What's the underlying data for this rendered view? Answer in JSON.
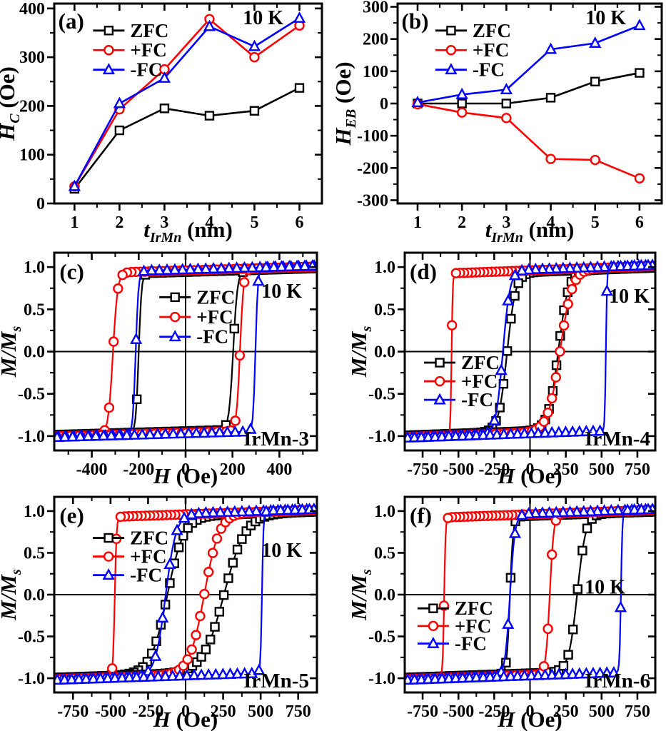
{
  "figure": {
    "background": "#ffffff",
    "temperature_label": "10 K",
    "series_colors": {
      "ZFC": "#000000",
      "+FC": "#ff0000",
      "-FC": "#0000ff"
    }
  },
  "chart_data": [
    {
      "id": "a",
      "type": "line",
      "panel_label": "(a)",
      "title": "",
      "xlabel": {
        "italic": "t",
        "sub": "IrMn",
        "rest": " (nm)"
      },
      "ylabel": {
        "italic": "H",
        "sub": "C",
        "rest": " (Oe)"
      },
      "xlim": [
        0.55,
        6.5
      ],
      "ylim": [
        0,
        410
      ],
      "xticks": [
        1,
        2,
        3,
        4,
        5,
        6
      ],
      "yticks": [
        0,
        100,
        200,
        300,
        400
      ],
      "xminor": [
        1.5,
        2.5,
        3.5,
        4.5,
        5.5
      ],
      "yminor": [
        50,
        150,
        250,
        350
      ],
      "zero_lines": false,
      "grid": false,
      "legend_position": "upper-left",
      "legend": {
        "fx": 0.145,
        "fy": 0.135,
        "dy": 0.098
      },
      "annotations": [
        {
          "text": "(a)",
          "fx": 0.015,
          "fy": 0.125,
          "anchor": "start",
          "size": 31
        },
        {
          "text": "10 K",
          "fx": 0.856,
          "fy": 0.103,
          "anchor": "end",
          "size": 28
        }
      ],
      "x": [
        1,
        2,
        3,
        4,
        5,
        6
      ],
      "series": [
        {
          "name": "ZFC",
          "marker": "square",
          "color": "#000000",
          "values": [
            30,
            150,
            195,
            180,
            190,
            237
          ]
        },
        {
          "name": "+FC",
          "marker": "circle",
          "color": "#ff0000",
          "values": [
            35,
            193,
            275,
            378,
            300,
            365
          ]
        },
        {
          "name": "-FC",
          "marker": "triangle",
          "color": "#0000ff",
          "values": [
            35,
            205,
            257,
            363,
            322,
            380
          ]
        }
      ]
    },
    {
      "id": "b",
      "type": "line",
      "panel_label": "(b)",
      "title": "",
      "xlabel": {
        "italic": "t",
        "sub": "IrMn",
        "rest": " (nm)"
      },
      "ylabel": {
        "italic": "H",
        "sub": "EB",
        "rest": " (Oe)"
      },
      "xlim": [
        0.55,
        6.5
      ],
      "ylim": [
        -310,
        310
      ],
      "xticks": [
        1,
        2,
        3,
        4,
        5,
        6
      ],
      "yticks": [
        -300,
        -200,
        -100,
        0,
        100,
        200,
        300
      ],
      "xminor": [
        1.5,
        2.5,
        3.5,
        4.5,
        5.5
      ],
      "yminor": [
        -250,
        -150,
        -50,
        50,
        150,
        250
      ],
      "zero_lines": false,
      "grid": false,
      "legend_position": "upper-left",
      "legend": {
        "fx": 0.143,
        "fy": 0.135,
        "dy": 0.098
      },
      "annotations": [
        {
          "text": "(b)",
          "fx": 0.015,
          "fy": 0.125,
          "anchor": "start",
          "size": 31
        },
        {
          "text": "10 K",
          "fx": 0.865,
          "fy": 0.103,
          "anchor": "end",
          "size": 28
        }
      ],
      "x": [
        1,
        2,
        3,
        4,
        5,
        6
      ],
      "series": [
        {
          "name": "ZFC",
          "marker": "square",
          "color": "#000000",
          "values": [
            0,
            0,
            0,
            18,
            68,
            95
          ]
        },
        {
          "name": "+FC",
          "marker": "circle",
          "color": "#ff0000",
          "values": [
            -2,
            -28,
            -45,
            -172,
            -175,
            -232
          ]
        },
        {
          "name": "-FC",
          "marker": "triangle",
          "color": "#0000ff",
          "values": [
            3,
            28,
            43,
            168,
            187,
            242
          ]
        }
      ]
    },
    {
      "id": "c",
      "type": "hysteresis",
      "panel_label": "(c)",
      "sample_label": "IrMn-3",
      "title": "",
      "xlabel": {
        "italic": "H",
        "sub": "",
        "rest": " (Oe)"
      },
      "ylabel": {
        "italic": "M/M",
        "sub": "s",
        "rest": ""
      },
      "xlim": [
        -560,
        560
      ],
      "ylim": [
        -1.17,
        1.17
      ],
      "hmax": 548,
      "slope": 8e-05,
      "xticks": [
        -400,
        -200,
        0,
        200,
        400
      ],
      "yticks": [
        -1.0,
        -0.5,
        0.0,
        0.5,
        1.0
      ],
      "ytick_labels": [
        "-1.0",
        "-0.5",
        "0.0",
        "0.5",
        "1.0"
      ],
      "xminor": [
        -500,
        -300,
        -100,
        100,
        300,
        500
      ],
      "yminor": [
        -0.75,
        -0.25,
        0.25,
        0.75
      ],
      "zero_lines": true,
      "grid": false,
      "legend_position": "center",
      "legend": {
        "fx": 0.4,
        "fy": 0.225,
        "dy": 0.1
      },
      "annotations": [
        {
          "text": "(c)",
          "fx": 0.02,
          "fy": 0.134,
          "anchor": "start",
          "size": 31
        },
        {
          "text": "10 K",
          "fx": 0.943,
          "fy": 0.228,
          "anchor": "end",
          "size": 28
        },
        {
          "text": "IrMn-3",
          "fx": 0.97,
          "fy": 0.975,
          "anchor": "end",
          "size": 29
        }
      ],
      "series": [
        {
          "name": "ZFC",
          "marker": "square",
          "color": "#000000",
          "sat": 0.94,
          "hc_down": -200,
          "w_down": 12,
          "hc_up": 203,
          "w_up": 18,
          "marker_step": 36
        },
        {
          "name": "+FC",
          "marker": "circle",
          "color": "#ff0000",
          "sat": 0.96,
          "hc_down": -310,
          "w_down": 20,
          "hc_up": 232,
          "w_up": 15,
          "marker_step": 19
        },
        {
          "name": "-FC",
          "marker": "triangle",
          "color": "#0000ff",
          "sat": 0.97,
          "hc_down": -213,
          "w_down": 12,
          "hc_up": 298,
          "w_up": 10,
          "marker_step": 33
        }
      ]
    },
    {
      "id": "d",
      "type": "hysteresis",
      "panel_label": "(d)",
      "sample_label": "IrMn-4",
      "title": "",
      "xlabel": {
        "italic": "H",
        "sub": "",
        "rest": " (Oe)"
      },
      "ylabel": {
        "italic": "M/M",
        "sub": "s",
        "rest": ""
      },
      "xlim": [
        -875,
        875
      ],
      "ylim": [
        -1.17,
        1.17
      ],
      "hmax": 855,
      "slope": 6e-05,
      "xticks": [
        -750,
        -500,
        -250,
        0,
        250,
        500,
        750
      ],
      "yticks": [
        -1.0,
        -0.5,
        0.0,
        0.5,
        1.0
      ],
      "ytick_labels": [
        "-1.0",
        "-0.5",
        "0.0",
        "0.5",
        "1.0"
      ],
      "xminor": [
        -625,
        -375,
        -125,
        125,
        375,
        625
      ],
      "yminor": [
        -0.75,
        -0.25,
        0.25,
        0.75
      ],
      "zero_lines": true,
      "grid": false,
      "legend_position": "lower-left",
      "legend": {
        "fx": 0.077,
        "fy": 0.556,
        "dy": 0.094
      },
      "annotations": [
        {
          "text": "(d)",
          "fx": 0.02,
          "fy": 0.134,
          "anchor": "start",
          "size": 31
        },
        {
          "text": "10 K",
          "fx": 0.977,
          "fy": 0.253,
          "anchor": "end",
          "size": 28
        },
        {
          "text": "IrMn-4",
          "fx": 0.98,
          "fy": 0.975,
          "anchor": "end",
          "size": 29
        }
      ],
      "series": [
        {
          "name": "ZFC",
          "marker": "square",
          "color": "#000000",
          "sat": 0.94,
          "hc_down": -160,
          "w_down": 60,
          "hc_up": 198,
          "w_up": 70,
          "marker_step": 26
        },
        {
          "name": "+FC",
          "marker": "circle",
          "color": "#ff0000",
          "sat": 0.96,
          "hc_down": -548,
          "w_down": 8,
          "hc_up": 210,
          "w_up": 85,
          "marker_step": 28
        },
        {
          "name": "-FC",
          "marker": "triangle",
          "color": "#0000ff",
          "sat": 0.97,
          "hc_down": -190,
          "w_down": 50,
          "hc_up": 530,
          "w_up": 8,
          "marker_step": 48
        }
      ]
    },
    {
      "id": "e",
      "type": "hysteresis",
      "panel_label": "(e)",
      "sample_label": "IrMn-5",
      "title": "",
      "xlabel": {
        "italic": "H",
        "sub": "",
        "rest": " (Oe)"
      },
      "ylabel": {
        "italic": "M/M",
        "sub": "s",
        "rest": ""
      },
      "xlim": [
        -875,
        875
      ],
      "ylim": [
        -1.17,
        1.17
      ],
      "hmax": 855,
      "slope": 6e-05,
      "xticks": [
        -750,
        -500,
        -250,
        0,
        250,
        500,
        750
      ],
      "yticks": [
        -1.0,
        -0.5,
        0.0,
        0.5,
        1.0
      ],
      "ytick_labels": [
        "-1.0",
        "-0.5",
        "0.0",
        "0.5",
        "1.0"
      ],
      "xminor": [
        -625,
        -375,
        -125,
        125,
        375,
        625
      ],
      "yminor": [
        -0.75,
        -0.25,
        0.25,
        0.75
      ],
      "zero_lines": true,
      "grid": false,
      "legend_position": "upper-left",
      "legend": {
        "fx": 0.147,
        "fy": 0.21,
        "dy": 0.095
      },
      "annotations": [
        {
          "text": "(e)",
          "fx": 0.02,
          "fy": 0.134,
          "anchor": "start",
          "size": 31
        },
        {
          "text": "10 K",
          "fx": 0.943,
          "fy": 0.307,
          "anchor": "end",
          "size": 28
        },
        {
          "text": "IrMn-5",
          "fx": 0.97,
          "fy": 0.975,
          "anchor": "end",
          "size": 29
        }
      ],
      "series": [
        {
          "name": "ZFC",
          "marker": "square",
          "color": "#000000",
          "sat": 0.94,
          "hc_down": -122,
          "w_down": 110,
          "hc_up": 258,
          "w_up": 140,
          "marker_step": 30
        },
        {
          "name": "+FC",
          "marker": "circle",
          "color": "#ff0000",
          "sat": 0.96,
          "hc_down": -472,
          "w_down": 12,
          "hc_up": 125,
          "w_up": 100,
          "marker_step": 28
        },
        {
          "name": "-FC",
          "marker": "triangle",
          "color": "#0000ff",
          "sat": 0.97,
          "hc_down": -133,
          "w_down": 70,
          "hc_up": 509,
          "w_up": 10,
          "marker_step": 48
        }
      ]
    },
    {
      "id": "f",
      "type": "hysteresis",
      "panel_label": "(f)",
      "sample_label": "IrMn-6",
      "title": "",
      "xlabel": {
        "italic": "H",
        "sub": "",
        "rest": " (Oe)"
      },
      "ylabel": {
        "italic": "M/M",
        "sub": "s",
        "rest": ""
      },
      "xlim": [
        -875,
        875
      ],
      "ylim": [
        -1.17,
        1.17
      ],
      "hmax": 855,
      "slope": 6e-05,
      "xticks": [
        -750,
        -500,
        -250,
        0,
        250,
        500,
        750
      ],
      "yticks": [
        -1.0,
        -0.5,
        0.0,
        0.5,
        1.0
      ],
      "ytick_labels": [
        "-1.0",
        "-0.5",
        "0.0",
        "0.5",
        "1.0"
      ],
      "xminor": [
        -625,
        -375,
        -125,
        125,
        375,
        625
      ],
      "yminor": [
        -0.75,
        -0.25,
        0.25,
        0.75
      ],
      "zero_lines": true,
      "grid": false,
      "legend_position": "lower-left",
      "legend": {
        "fx": 0.051,
        "fy": 0.57,
        "dy": 0.09
      },
      "annotations": [
        {
          "text": "(f)",
          "fx": 0.02,
          "fy": 0.134,
          "anchor": "start",
          "size": 31
        },
        {
          "text": "10 K",
          "fx": 0.88,
          "fy": 0.495,
          "anchor": "end",
          "size": 28
        },
        {
          "text": "IrMn-6",
          "fx": 0.98,
          "fy": 0.975,
          "anchor": "end",
          "size": 29
        }
      ],
      "series": [
        {
          "name": "ZFC",
          "marker": "square",
          "color": "#000000",
          "sat": 0.94,
          "hc_down": -140,
          "w_down": 22,
          "hc_up": 330,
          "w_up": 60,
          "marker_step": 33
        },
        {
          "name": "+FC",
          "marker": "circle",
          "color": "#ff0000",
          "sat": 0.96,
          "hc_down": -600,
          "w_down": 10,
          "hc_up": 138,
          "w_up": 28,
          "marker_step": 28
        },
        {
          "name": "-FC",
          "marker": "triangle",
          "color": "#0000ff",
          "sat": 0.97,
          "hc_down": -140,
          "w_down": 35,
          "hc_up": 635,
          "w_up": 10,
          "marker_step": 48
        }
      ]
    }
  ]
}
